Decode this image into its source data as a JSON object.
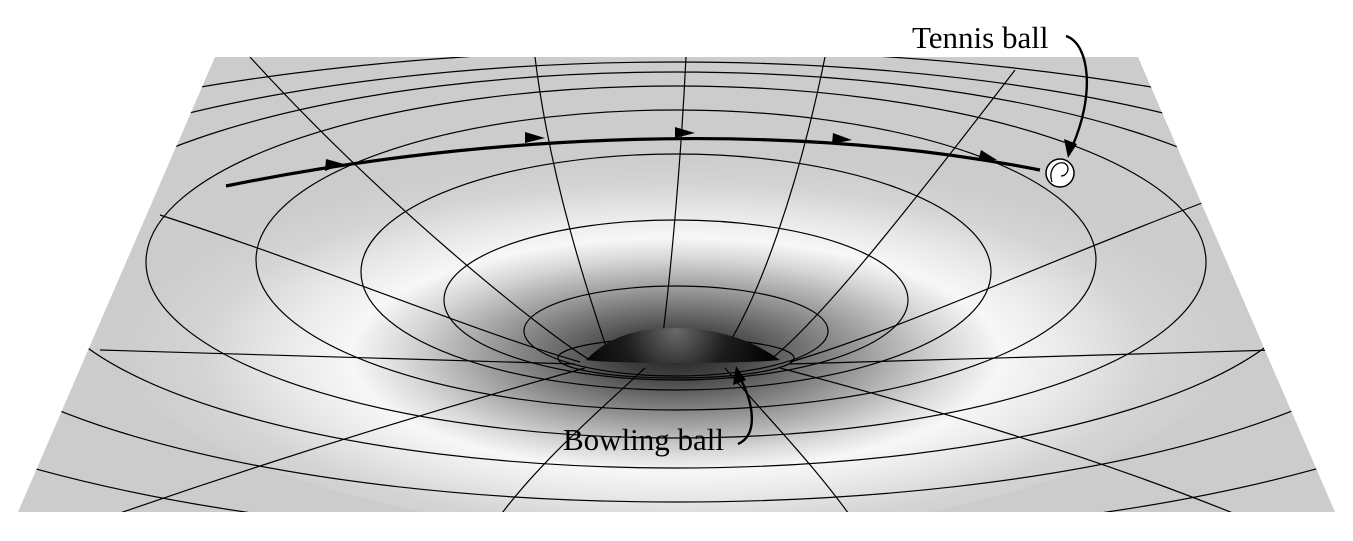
{
  "labels": {
    "tennis_ball": "Tennis ball",
    "bowling_ball": "Bowling ball"
  },
  "colors": {
    "sheet": "#cfcfcf",
    "sheet_highlight": "#f7f7f7",
    "well_dark": "#3a3a3a",
    "bowling_ball": "#111111",
    "grid_line": "#000000",
    "path": "#000000",
    "background": "#ffffff"
  },
  "icons": {
    "bowling_ball": "dark-hemisphere",
    "tennis_ball": "white-circle-with-seam"
  }
}
